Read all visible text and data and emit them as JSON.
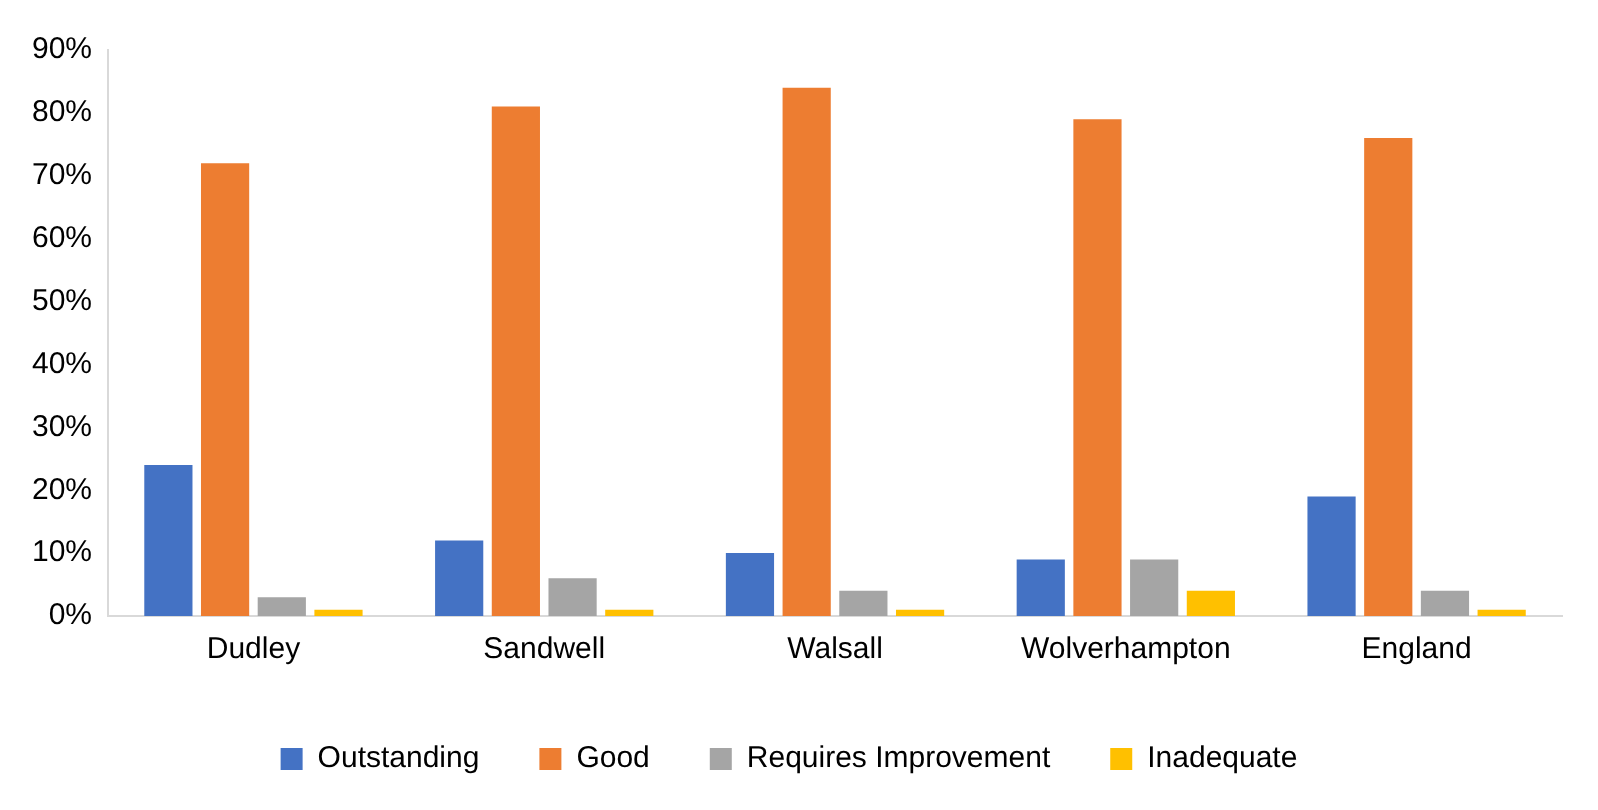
{
  "chart_data": {
    "type": "bar",
    "categories": [
      "Dudley",
      "Sandwell",
      "Walsall",
      "Wolverhampton",
      "England"
    ],
    "series": [
      {
        "name": "Outstanding",
        "color": "#4472c4",
        "values": [
          24,
          12,
          10,
          9,
          19
        ]
      },
      {
        "name": "Good",
        "color": "#ed7d31",
        "values": [
          72,
          81,
          84,
          79,
          76
        ]
      },
      {
        "name": "Requires Improvement",
        "color": "#a5a5a5",
        "values": [
          3,
          6,
          4,
          9,
          4
        ]
      },
      {
        "name": "Inadequate",
        "color": "#ffc000",
        "values": [
          1,
          1,
          1,
          4,
          1
        ]
      }
    ],
    "ylim": [
      0,
      90
    ],
    "yticks": [
      {
        "value": 0,
        "label": "0%"
      },
      {
        "value": 10,
        "label": "10%"
      },
      {
        "value": 20,
        "label": "20%"
      },
      {
        "value": 30,
        "label": "30%"
      },
      {
        "value": 40,
        "label": "40%"
      },
      {
        "value": 50,
        "label": "50%"
      },
      {
        "value": 60,
        "label": "60%"
      },
      {
        "value": 70,
        "label": "70%"
      },
      {
        "value": 80,
        "label": "80%"
      },
      {
        "value": 90,
        "label": "90%"
      }
    ],
    "grid": false,
    "legend": "bottom"
  }
}
